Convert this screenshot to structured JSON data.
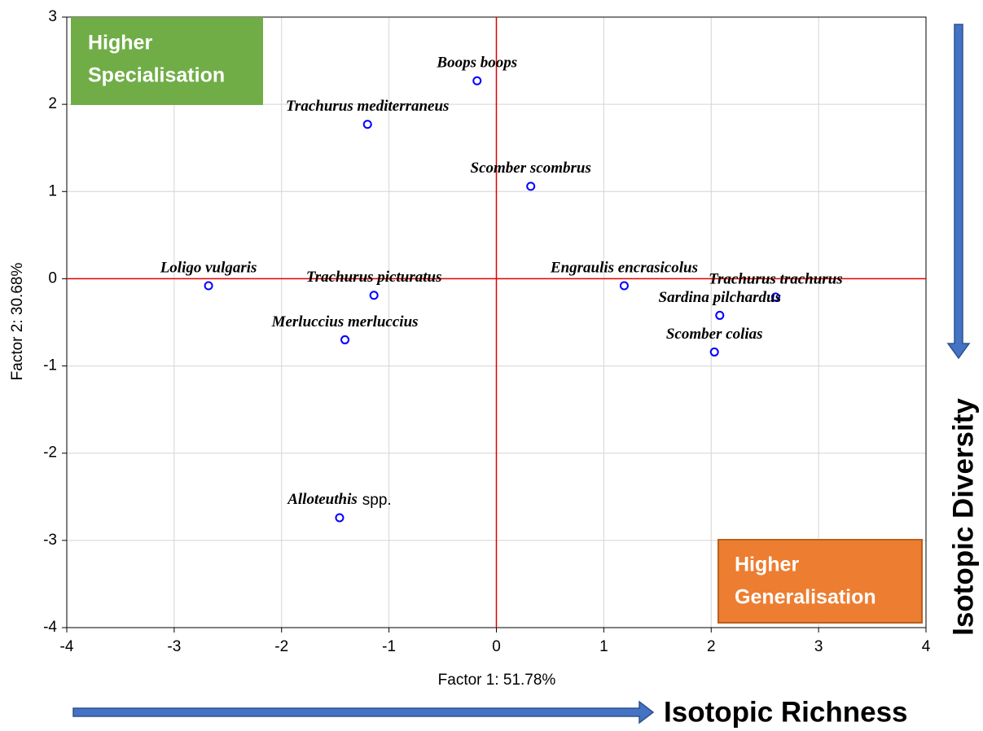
{
  "chart_data": {
    "type": "scatter",
    "xlabel": "Factor 1: 51.78%",
    "ylabel": "Factor 2: 30.68%",
    "xlim": [
      -4,
      4
    ],
    "ylim": [
      -4,
      3
    ],
    "xticks": [
      -4,
      -3,
      -2,
      -1,
      0,
      1,
      2,
      3,
      4
    ],
    "yticks": [
      -4,
      -3,
      -2,
      -1,
      0,
      1,
      2,
      3
    ],
    "grid": true,
    "reference_lines": {
      "x": 0,
      "y": 0,
      "color": "#e00000"
    },
    "series": [
      {
        "color": "#0000ff",
        "x": [
          -0.18,
          -1.2,
          0.32,
          -2.68,
          -1.14,
          -1.41,
          -1.46,
          1.19,
          2.6,
          2.08,
          2.03
        ],
        "y": [
          2.27,
          1.77,
          1.06,
          -0.08,
          -0.19,
          -0.7,
          -2.74,
          -0.08,
          -0.21,
          -0.42,
          -0.84
        ],
        "labels": [
          "Boops boops",
          "Trachurus mediterraneus",
          "Scomber scombrus",
          "Loligo vulgaris",
          "Trachurus picturatus",
          "Merluccius merluccius",
          {
            "italic": "Alloteuthis",
            "plain": "spp."
          },
          "Engraulis encrasicolus",
          "Trachurus trachurus",
          "Sardina pilchardus",
          "Scomber colias"
        ]
      }
    ],
    "annotations": [
      {
        "lines": [
          "Higher",
          "Specialisation"
        ],
        "color": "#70ad47"
      },
      {
        "lines": [
          "Higher",
          "Generalisation"
        ],
        "color": "#ed7d31"
      }
    ],
    "arrows": {
      "x_label": "Isotopic Richness",
      "y_label": "Isotopic Diversity",
      "color": "#4472c4"
    }
  }
}
